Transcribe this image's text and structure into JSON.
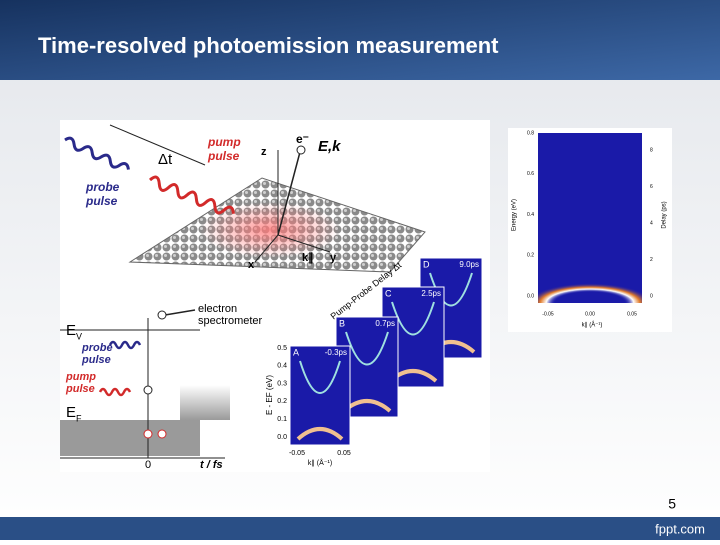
{
  "header": {
    "title": "Time-resolved photoemission measurement"
  },
  "schematic": {
    "delay": "Δt",
    "pump": [
      "pump",
      "pulse"
    ],
    "probe": [
      "probe",
      "pulse"
    ],
    "electron": "e⁻",
    "e_k": "E,k",
    "axes": [
      "z",
      "x",
      "y",
      "k∥"
    ]
  },
  "energy_diagram": {
    "ev": [
      "E",
      "V"
    ],
    "ef": [
      "E",
      "F"
    ],
    "spectrometer": [
      "electron",
      "spectrometer"
    ],
    "probe": [
      "probe",
      "pulse"
    ],
    "pump": [
      "pump",
      "pulse"
    ],
    "origin": "0",
    "time_axis": "t / fs"
  },
  "spectra": {
    "delay_axis": "Pump-Probe Delay Δt",
    "panels": [
      {
        "letter": "A",
        "delay": "-0.3ps"
      },
      {
        "letter": "B",
        "delay": "0.7ps"
      },
      {
        "letter": "C",
        "delay": "2.5ps"
      },
      {
        "letter": "D",
        "delay": "9.0ps"
      }
    ],
    "y_label": "E - EF (eV)",
    "y_ticks": [
      "0.5",
      "0.4",
      "0.3",
      "0.2",
      "0.1",
      "0.0"
    ],
    "x_ticks": [
      "-0.05",
      "0.05"
    ],
    "x_label": "k∥ (Å⁻¹)"
  },
  "map": {
    "y_label": "Energy (eV)",
    "y_ticks": [
      "0.8",
      "0.6",
      "0.4",
      "0.2",
      "0.0"
    ],
    "y2_label": "Delay (ps)",
    "y2_ticks": [
      "8",
      "6",
      "4",
      "2",
      "0"
    ],
    "x_ticks": [
      "-0.05",
      "0.00",
      "0.05"
    ],
    "x_label": "k∥ (Å⁻¹)"
  },
  "page_number": "5",
  "footer": "fppt.com"
}
